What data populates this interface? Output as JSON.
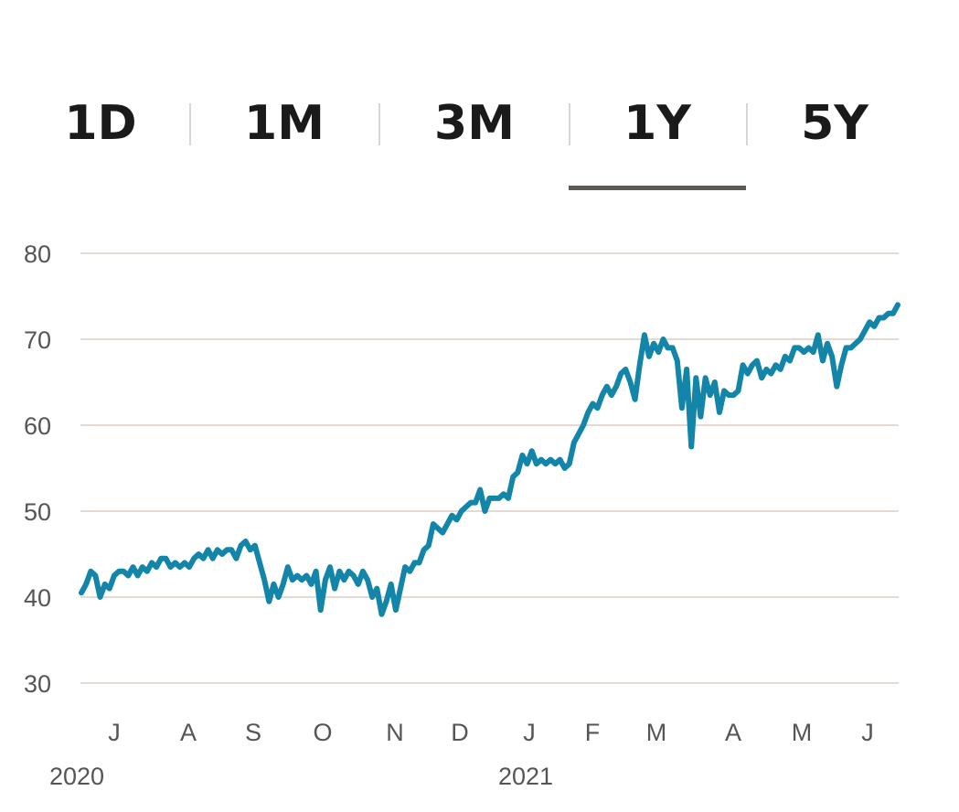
{
  "tabs": [
    {
      "label": "1D",
      "selected": false
    },
    {
      "label": "1M",
      "selected": false
    },
    {
      "label": "3M",
      "selected": false
    },
    {
      "label": "1Y",
      "selected": true
    },
    {
      "label": "5Y",
      "selected": false
    }
  ],
  "colors": {
    "line": "#1385a8",
    "grid": "#e4d9d3",
    "tab_underline": "#5c5a52"
  },
  "chart_data": {
    "type": "line",
    "title": "",
    "xlabel": "",
    "ylabel": "",
    "grid": true,
    "ylim": [
      30,
      80
    ],
    "yticks": [
      30,
      40,
      50,
      60,
      70,
      80
    ],
    "month_ticks": [
      "J",
      "A",
      "S",
      "O",
      "N",
      "D",
      "J",
      "F",
      "M",
      "A",
      "M",
      "J"
    ],
    "year_labels": [
      "2020",
      "2021"
    ],
    "series": [
      {
        "values": [
          40.5,
          41.5,
          43,
          42.5,
          40,
          41.5,
          41,
          42.5,
          43,
          43,
          42.5,
          43.5,
          42.5,
          43.5,
          43,
          44,
          43.5,
          44.5,
          44.5,
          43.5,
          44,
          43.5,
          44,
          43.5,
          44.5,
          45,
          44.5,
          45.5,
          44.5,
          45.5,
          45,
          45.5,
          45.5,
          44.5,
          46,
          46.5,
          45.5,
          46,
          44,
          42,
          39.5,
          41.5,
          40,
          41.5,
          43.5,
          42,
          42.5,
          42,
          42.5,
          41.5,
          43,
          38.5,
          42,
          43.5,
          41,
          43,
          42,
          43,
          42.5,
          41.5,
          43,
          42,
          40,
          41,
          38,
          39.5,
          41.5,
          38.5,
          41,
          43.5,
          43,
          44,
          44,
          45.5,
          46,
          48.5,
          48,
          47.5,
          48.5,
          49.5,
          49,
          50,
          50.5,
          51,
          51,
          52.5,
          50,
          51.5,
          51.5,
          51.5,
          52,
          51.5,
          54,
          54.5,
          56.5,
          55.5,
          57,
          55.5,
          56,
          55.5,
          56,
          55.5,
          56,
          55,
          55.5,
          58,
          59,
          60,
          61.5,
          62.5,
          62,
          63.5,
          64.5,
          63.5,
          64.5,
          66,
          66.5,
          65,
          63,
          67,
          70.5,
          68,
          69.5,
          68.5,
          70,
          69,
          69,
          67.5,
          62,
          66.5,
          57.5,
          65.5,
          61,
          65.5,
          63.5,
          65,
          61.5,
          64,
          63.5,
          63.5,
          64,
          67,
          66,
          67,
          67.5,
          65.5,
          66.5,
          66,
          67,
          66.5,
          68,
          67.5,
          69,
          69,
          68.5,
          69,
          68.5,
          70.5,
          67.5,
          69.5,
          68,
          64.5,
          67,
          69,
          69,
          69.5,
          70,
          71,
          72,
          71.5,
          72.5,
          72.5,
          73,
          73,
          74
        ]
      }
    ]
  }
}
